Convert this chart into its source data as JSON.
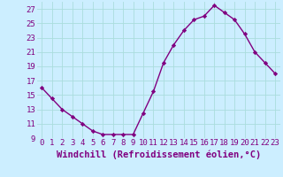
{
  "x": [
    0,
    1,
    2,
    3,
    4,
    5,
    6,
    7,
    8,
    9,
    10,
    11,
    12,
    13,
    14,
    15,
    16,
    17,
    18,
    19,
    20,
    21,
    22,
    23
  ],
  "y": [
    16,
    14.5,
    13,
    12,
    11,
    10,
    9.5,
    9.5,
    9.5,
    9.5,
    12.5,
    15.5,
    19.5,
    22,
    24,
    25.5,
    26,
    27.5,
    26.5,
    25.5,
    23.5,
    21,
    19.5,
    18
  ],
  "line_color": "#800080",
  "marker": "D",
  "marker_size": 2.2,
  "line_width": 1.0,
  "grid_color": "#aadddd",
  "xlabel": "Windchill (Refroidissement éolien,°C)",
  "xlabel_fontsize": 7.5,
  "xtick_labels": [
    "0",
    "1",
    "2",
    "3",
    "4",
    "5",
    "6",
    "7",
    "8",
    "9",
    "10",
    "11",
    "12",
    "13",
    "14",
    "15",
    "16",
    "17",
    "18",
    "19",
    "20",
    "21",
    "22",
    "23"
  ],
  "ylim": [
    9,
    28
  ],
  "xlim": [
    -0.5,
    23.5
  ],
  "yticks": [
    9,
    11,
    13,
    15,
    17,
    19,
    21,
    23,
    25,
    27
  ],
  "tick_fontsize": 6.5,
  "plot_bg": "#cceeff",
  "fig_bg": "#cceeff"
}
